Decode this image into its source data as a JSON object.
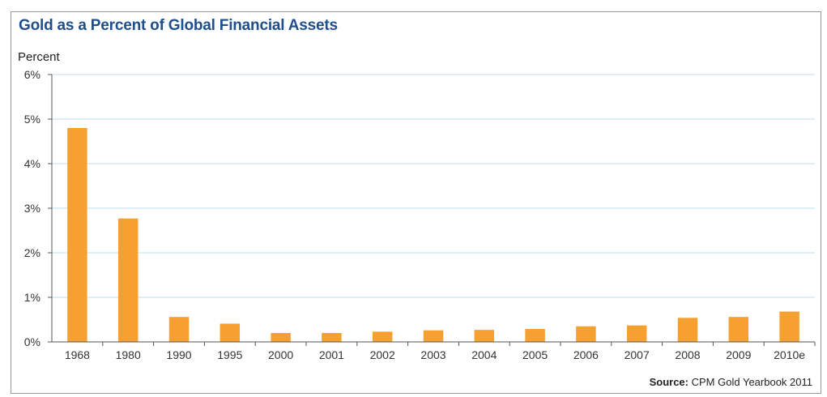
{
  "chart_data": {
    "type": "bar",
    "title": "Gold as a Percent of Global Financial Assets",
    "ylabel": "Percent",
    "xlabel": "",
    "categories": [
      "1968",
      "1980",
      "1990",
      "1995",
      "2000",
      "2001",
      "2002",
      "2003",
      "2004",
      "2005",
      "2006",
      "2007",
      "2008",
      "2009",
      "2010e"
    ],
    "values": [
      4.8,
      2.77,
      0.56,
      0.41,
      0.2,
      0.2,
      0.23,
      0.26,
      0.27,
      0.29,
      0.35,
      0.37,
      0.54,
      0.56,
      0.68
    ],
    "ylim": [
      0,
      6
    ],
    "yticks": [
      0,
      1,
      2,
      3,
      4,
      5,
      6
    ],
    "ytick_labels": [
      "0%",
      "1%",
      "2%",
      "3%",
      "4%",
      "5%",
      "6%"
    ],
    "grid": true,
    "bar_color": "#f5a031",
    "grid_color": "#bcdde8",
    "title_color": "#1f4e8c"
  },
  "source": {
    "label": "Source:",
    "text": "CPM Gold Yearbook 2011"
  }
}
